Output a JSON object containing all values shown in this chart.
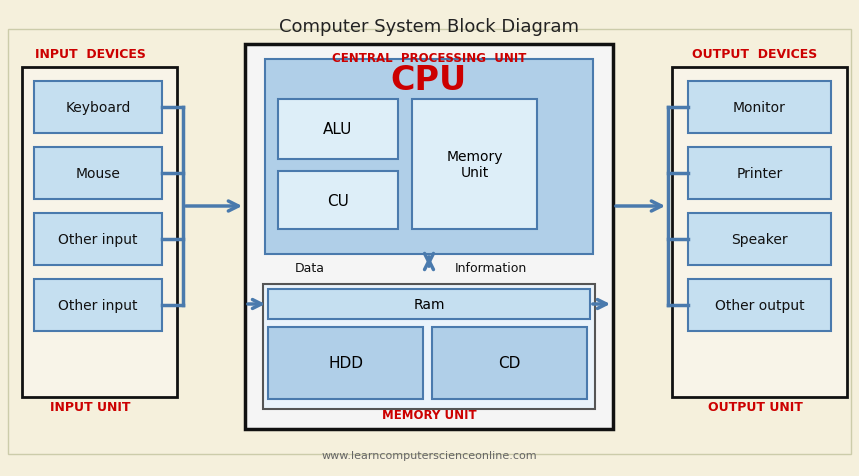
{
  "title": "Computer System Block Diagram",
  "bg_color": "#f5f0dc",
  "box_blue_light": "#c5dff0",
  "box_blue_mid": "#b0cfe8",
  "border_blue": "#4a7aad",
  "border_dark": "#111111",
  "arrow_color": "#4a7aad",
  "red_color": "#cc0000",
  "text_dark": "#111111",
  "text_gray": "#555555",
  "input_label": "INPUT  DEVICES",
  "output_label": "OUTPUT  DEVICES",
  "input_unit": "INPUT UNIT",
  "output_unit": "OUTPUT UNIT",
  "cpu_outer_label": "CENTRAL  PROCESSING  UNIT",
  "memory_label": "MEMORY UNIT",
  "cpu_text": "CPU",
  "input_devices": [
    "Keyboard",
    "Mouse",
    "Other input",
    "Other input"
  ],
  "output_devices": [
    "Monitor",
    "Printer",
    "Speaker",
    "Other output"
  ],
  "alu_label": "ALU",
  "cu_label": "CU",
  "mem_unit_label": "Memory\nUnit",
  "ram_label": "Ram",
  "hdd_label": "HDD",
  "cd_label": "CD",
  "data_label": "Data",
  "info_label": "Information",
  "website": "www.learncomputerscienceonline.com"
}
